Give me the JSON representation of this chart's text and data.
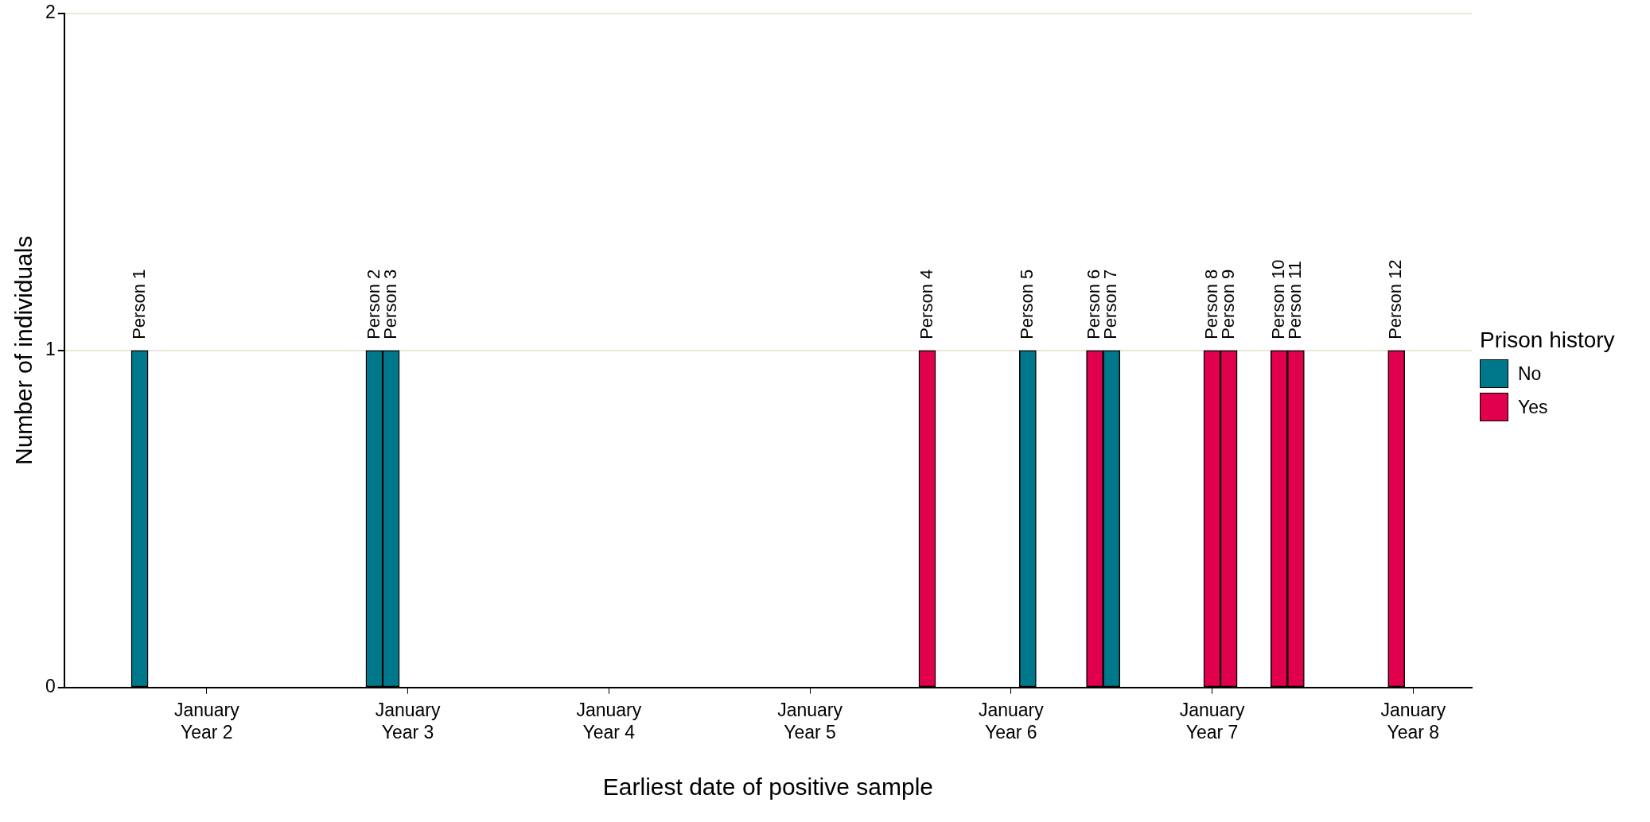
{
  "chart_data": {
    "type": "bar",
    "xlabel": "Earliest date of positive sample",
    "ylabel": "Number of individuals",
    "legend_title": "Prison history",
    "categories": [
      null,
      null,
      null,
      null,
      null,
      null,
      null,
      null,
      "January\nYear 2",
      null,
      null,
      null,
      null,
      null,
      null,
      null,
      null,
      null,
      null,
      null,
      "January\nYear 3",
      null,
      null,
      null,
      null,
      null,
      null,
      null,
      null,
      null,
      null,
      null,
      "January\nYear 4",
      null,
      null,
      null,
      null,
      null,
      null,
      null,
      null,
      null,
      null,
      null,
      "January\nYear 5",
      null,
      null,
      null,
      null,
      null,
      null,
      null,
      null,
      null,
      null,
      null,
      "January\nYear 6",
      null,
      null,
      null,
      null,
      null,
      null,
      null,
      null,
      null,
      null,
      null,
      "January\nYear 7",
      null,
      null,
      null,
      null,
      null,
      null,
      null,
      null,
      null,
      null,
      null,
      "January\nYear 8",
      null,
      null,
      null
    ],
    "series": [
      {
        "name": "No",
        "color": "#00788c",
        "values": [
          null,
          null,
          null,
          null,
          1,
          null,
          null,
          null,
          null,
          null,
          null,
          null,
          null,
          null,
          null,
          null,
          null,
          null,
          1,
          1,
          null,
          null,
          null,
          null,
          null,
          null,
          null,
          null,
          null,
          null,
          null,
          null,
          null,
          null,
          null,
          null,
          null,
          null,
          null,
          null,
          null,
          null,
          null,
          null,
          null,
          null,
          null,
          null,
          null,
          null,
          null,
          null,
          null,
          null,
          null,
          null,
          null,
          1,
          null,
          null,
          null,
          null,
          1,
          null,
          null,
          null,
          null,
          null,
          null,
          null,
          null,
          null,
          null,
          null,
          null,
          null,
          null,
          null,
          null,
          null,
          null,
          null,
          null,
          null
        ],
        "value_labels": [
          null,
          null,
          null,
          null,
          "Person 1",
          null,
          null,
          null,
          null,
          null,
          null,
          null,
          null,
          null,
          null,
          null,
          null,
          null,
          "Person 2",
          "Person 3",
          null,
          null,
          null,
          null,
          null,
          null,
          null,
          null,
          null,
          null,
          null,
          null,
          null,
          null,
          null,
          null,
          null,
          null,
          null,
          null,
          null,
          null,
          null,
          null,
          null,
          null,
          null,
          null,
          null,
          null,
          null,
          null,
          null,
          null,
          null,
          null,
          null,
          "Person 5",
          null,
          null,
          null,
          null,
          "Person 7",
          null,
          null,
          null,
          null,
          null,
          null,
          null,
          null,
          null,
          null,
          null,
          null,
          null,
          null,
          null,
          null,
          null,
          null,
          null,
          null,
          null
        ]
      },
      {
        "name": "Yes",
        "color": "#e0004d",
        "values": [
          null,
          null,
          null,
          null,
          null,
          null,
          null,
          null,
          null,
          null,
          null,
          null,
          null,
          null,
          null,
          null,
          null,
          null,
          null,
          null,
          null,
          null,
          null,
          null,
          null,
          null,
          null,
          null,
          null,
          null,
          null,
          null,
          null,
          null,
          null,
          null,
          null,
          null,
          null,
          null,
          null,
          null,
          null,
          null,
          null,
          null,
          null,
          null,
          null,
          null,
          null,
          1,
          null,
          null,
          null,
          null,
          null,
          null,
          null,
          null,
          null,
          1,
          null,
          null,
          null,
          null,
          null,
          null,
          1,
          1,
          null,
          null,
          1,
          1,
          null,
          null,
          null,
          null,
          null,
          1,
          null,
          null,
          null,
          null
        ],
        "value_labels": [
          null,
          null,
          null,
          null,
          null,
          null,
          null,
          null,
          null,
          null,
          null,
          null,
          null,
          null,
          null,
          null,
          null,
          null,
          null,
          null,
          null,
          null,
          null,
          null,
          null,
          null,
          null,
          null,
          null,
          null,
          null,
          null,
          null,
          null,
          null,
          null,
          null,
          null,
          null,
          null,
          null,
          null,
          null,
          null,
          null,
          null,
          null,
          null,
          null,
          null,
          null,
          "Person 4",
          null,
          null,
          null,
          null,
          null,
          null,
          null,
          null,
          null,
          "Person 6",
          null,
          null,
          null,
          null,
          null,
          null,
          "Person 8",
          "Person 9",
          null,
          null,
          "Person 10",
          "Person 11",
          null,
          null,
          null,
          null,
          null,
          "Person 12",
          null,
          null,
          null,
          null
        ]
      }
    ],
    "ylim": [
      0,
      2
    ],
    "yticks": [
      0,
      1,
      2
    ],
    "grid": "y",
    "legend": "right"
  }
}
